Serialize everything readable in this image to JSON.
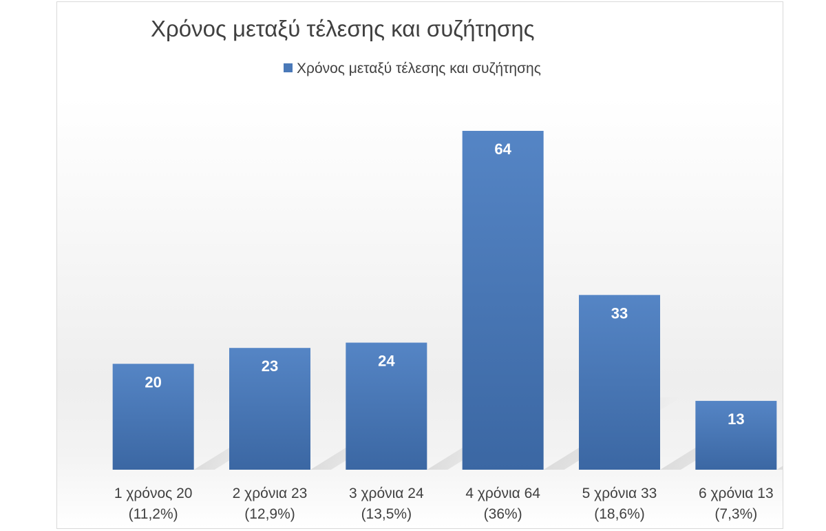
{
  "chart_data": {
    "type": "bar",
    "title": "Χρόνος μεταξύ τέλεσης και συζήτησης",
    "legend": {
      "position": "top",
      "entries": [
        "Χρόνος μεταξύ τέλεσης και συζήτησης"
      ]
    },
    "categories": [
      [
        "1 χρόνος 20",
        "(11,2%)"
      ],
      [
        "2 χρόνια 23",
        "(12,9%)"
      ],
      [
        "3 χρόνια 24",
        "(13,5%)"
      ],
      [
        "4 χρόνια 64",
        "(36%)"
      ],
      [
        "5 χρόνια 33",
        "(18,6%)"
      ],
      [
        "6 χρόνια 13",
        "(7,3%)"
      ]
    ],
    "series": [
      {
        "name": "Χρόνος μεταξύ τέλεσης και συζήτησης",
        "values": [
          20,
          23,
          24,
          64,
          33,
          13
        ]
      }
    ],
    "data_labels": [
      "20",
      "23",
      "24",
      "64",
      "33",
      "13"
    ],
    "ylim": [
      0,
      64
    ],
    "grid": false,
    "colors": {
      "bar_top": "#5585c5",
      "bar_bottom": "#3b67a3",
      "legend_swatch": "#4a79b8"
    }
  }
}
